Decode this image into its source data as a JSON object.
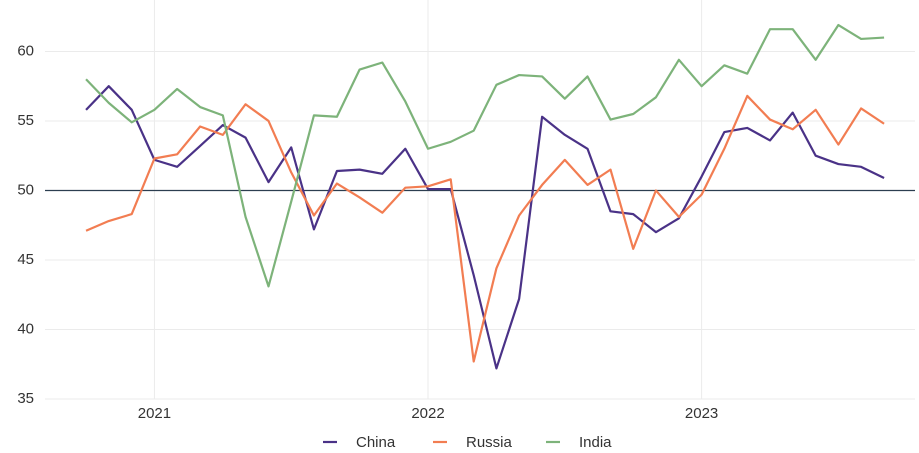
{
  "chart_data": {
    "type": "line",
    "x": [
      2020.75,
      2020.833,
      2020.917,
      2021,
      2021.083,
      2021.167,
      2021.25,
      2021.333,
      2021.417,
      2021.5,
      2021.583,
      2021.667,
      2021.75,
      2021.833,
      2021.917,
      2022,
      2022.083,
      2022.167,
      2022.25,
      2022.333,
      2022.417,
      2022.5,
      2022.583,
      2022.667,
      2022.75,
      2022.833,
      2022.917,
      2023,
      2023.083,
      2023.167,
      2023.25,
      2023.333,
      2023.417,
      2023.5,
      2023.583,
      2023.667
    ],
    "series": [
      {
        "name": "China",
        "color": "#4a3287",
        "values": [
          55.8,
          57.5,
          55.8,
          52.2,
          51.7,
          53.2,
          54.7,
          53.8,
          50.6,
          53.1,
          47.2,
          51.4,
          51.5,
          51.2,
          53.0,
          50.1,
          50.1,
          43.9,
          37.2,
          42.2,
          55.3,
          54.0,
          53.0,
          48.5,
          48.3,
          47.0,
          48.0,
          51.0,
          54.2,
          54.5,
          53.6,
          55.6,
          52.5,
          51.9,
          51.7,
          50.9
        ]
      },
      {
        "name": "Russia",
        "color": "#f27d52",
        "values": [
          47.1,
          47.8,
          48.3,
          52.3,
          52.6,
          54.6,
          54.0,
          56.2,
          55.0,
          51.3,
          48.2,
          50.5,
          49.5,
          48.4,
          50.2,
          50.3,
          50.8,
          37.7,
          44.4,
          48.2,
          50.4,
          52.2,
          50.4,
          51.5,
          45.8,
          50.0,
          48.1,
          49.7,
          53.0,
          56.8,
          55.1,
          54.4,
          55.8,
          53.3,
          55.9,
          54.8
        ]
      },
      {
        "name": "India",
        "color": "#7db37a",
        "values": [
          58.0,
          56.3,
          54.9,
          55.8,
          57.3,
          56.0,
          55.4,
          48.1,
          43.1,
          49.2,
          55.4,
          55.3,
          58.7,
          59.2,
          56.4,
          53.0,
          53.5,
          54.3,
          57.6,
          58.3,
          58.2,
          56.6,
          58.2,
          55.1,
          55.5,
          56.7,
          59.4,
          57.5,
          59.0,
          58.4,
          61.6,
          61.6,
          59.4,
          61.9,
          60.9,
          61.0
        ]
      }
    ],
    "xlim": [
      2020.6,
      2023.78
    ],
    "xticks": [
      2021,
      2022,
      2023
    ],
    "ylim": [
      35,
      63.7
    ],
    "yticks": [
      35,
      40,
      45,
      50,
      55,
      60
    ],
    "hline": 50,
    "grid": true,
    "legend": "bottom"
  }
}
